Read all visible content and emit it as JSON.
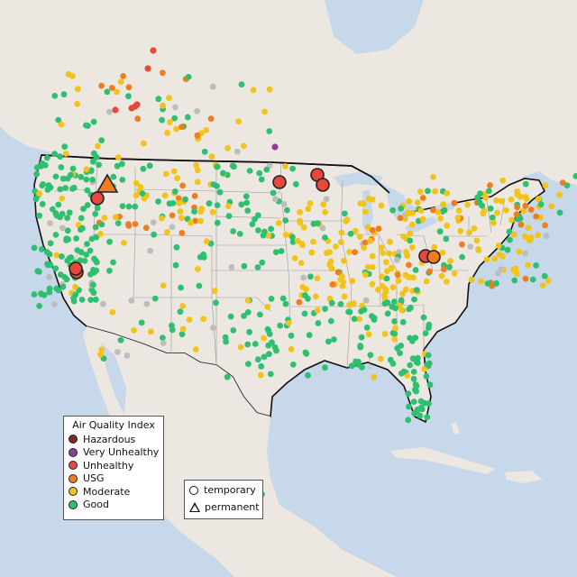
{
  "colors": {
    "water": "#c7d8ea",
    "land": "#ece8e1",
    "hazardous": "#7e2a1e",
    "very_unhealthy": "#8f3f97",
    "unhealthy": "#e8473b",
    "usg": "#ef7d20",
    "moderate": "#f2c318",
    "good": "#2fbf71",
    "no_data": "#bdbdbd",
    "border": "#111111"
  },
  "legend": {
    "title": "Air Quality Index",
    "items": [
      {
        "label": "Hazardous",
        "color": "#7e2a1e"
      },
      {
        "label": "Very Unhealthy",
        "color": "#8f3f97"
      },
      {
        "label": "Unhealthy",
        "color": "#e8473b"
      },
      {
        "label": "USG",
        "color": "#ef7d20"
      },
      {
        "label": "Moderate",
        "color": "#f2c318"
      },
      {
        "label": "Good",
        "color": "#2fbf71"
      }
    ]
  },
  "type_legend": {
    "temporary": "temporary",
    "permanent": "permanent"
  }
}
